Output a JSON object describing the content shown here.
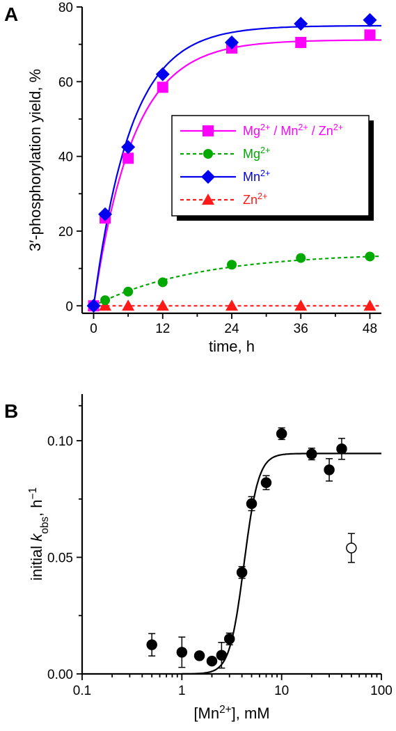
{
  "chart_data": [
    {
      "panel": "A",
      "type": "line",
      "xlabel": "time, h",
      "ylabel": "3′-phosphorylation yield, %",
      "xlim": [
        -2,
        50
      ],
      "ylim": [
        -2,
        80
      ],
      "xticks": [
        0,
        12,
        24,
        36,
        48
      ],
      "yticks": [
        0,
        20,
        40,
        60,
        80
      ],
      "x": [
        0,
        2,
        6,
        12,
        24,
        36,
        48
      ],
      "legend_position": "right-middle, boxed with shadow",
      "series": [
        {
          "name": "Mg2+ / Mn2+ / Zn2+",
          "label_parts": [
            [
              "Mg",
              "2+"
            ],
            [
              " / Mn",
              "2+"
            ],
            [
              " / Zn",
              "2+"
            ]
          ],
          "color": "#ff00ff",
          "marker": "square",
          "line_style": "solid",
          "values": [
            0,
            23.5,
            39.5,
            58.5,
            69,
            70.5,
            72.5
          ],
          "fit": {
            "ymax": 71.2,
            "k": 0.145
          }
        },
        {
          "name": "Mg2+",
          "label_parts": [
            [
              "Mg",
              "2+"
            ]
          ],
          "color": "#00a800",
          "marker": "circle",
          "line_style": "dashed",
          "values": [
            0,
            1.5,
            3.8,
            6.3,
            11,
            12.8,
            13.2
          ],
          "fit": {
            "ymax": 14.2,
            "k": 0.055
          }
        },
        {
          "name": "Mn2+",
          "label_parts": [
            [
              "Mn",
              "2+"
            ]
          ],
          "color": "#0000ee",
          "marker": "diamond",
          "line_style": "solid",
          "values": [
            0,
            24.5,
            42.5,
            62,
            70.5,
            75.5,
            76.5
          ],
          "fit": {
            "ymax": 75,
            "k": 0.155
          }
        },
        {
          "name": "Zn2+",
          "label_parts": [
            [
              "Zn",
              "2+"
            ]
          ],
          "color": "#ff1a1a",
          "marker": "triangle",
          "line_style": "dashed",
          "values": [
            0,
            0,
            0,
            0,
            0,
            0,
            0
          ],
          "fit": {
            "ymax": 0,
            "k": 0.1
          }
        }
      ]
    },
    {
      "panel": "B",
      "type": "scatter",
      "xlabel": "[Mn2+], mM",
      "xlabel_parts": [
        [
          "[Mn",
          ""
        ],
        [
          "2+",
          "sup"
        ],
        [
          "], mM",
          ""
        ]
      ],
      "ylabel": "initial kobs, h−1",
      "ylabel_parts": [
        [
          "initial ",
          ""
        ],
        [
          "k",
          "italic"
        ],
        [
          "obs",
          "sub"
        ],
        [
          ", h",
          ""
        ],
        [
          "−1",
          "sup"
        ]
      ],
      "x_scale": "log",
      "xlim": [
        0.1,
        100
      ],
      "ylim": [
        0,
        0.12
      ],
      "xticks": [
        0.1,
        1,
        10,
        100
      ],
      "xtick_labels": [
        "0.1",
        "1",
        "10",
        "100"
      ],
      "yticks": [
        0,
        0.05,
        0.1
      ],
      "ytick_labels": [
        "0.00",
        "0.05",
        "0.10"
      ],
      "points": [
        {
          "x": 0.5,
          "y": 0.0125,
          "err": 0.0048,
          "filled": true
        },
        {
          "x": 1.0,
          "y": 0.0093,
          "err": 0.0065,
          "filled": true
        },
        {
          "x": 1.5,
          "y": 0.0078,
          "err": 0,
          "filled": true
        },
        {
          "x": 2.0,
          "y": 0.0055,
          "err": 0,
          "filled": true
        },
        {
          "x": 2.5,
          "y": 0.008,
          "err": 0.0055,
          "filled": true
        },
        {
          "x": 3.0,
          "y": 0.015,
          "err": 0.0025,
          "filled": true
        },
        {
          "x": 4.0,
          "y": 0.0435,
          "err": 0.0025,
          "filled": true
        },
        {
          "x": 5.0,
          "y": 0.073,
          "err": 0.003,
          "filled": true
        },
        {
          "x": 7.0,
          "y": 0.082,
          "err": 0.003,
          "filled": true
        },
        {
          "x": 10.0,
          "y": 0.103,
          "err": 0.0025,
          "filled": true
        },
        {
          "x": 20.0,
          "y": 0.0943,
          "err": 0.0025,
          "filled": true
        },
        {
          "x": 30.0,
          "y": 0.0875,
          "err": 0.0048,
          "filled": true
        },
        {
          "x": 40.0,
          "y": 0.0965,
          "err": 0.0045,
          "filled": true
        },
        {
          "x": 50.0,
          "y": 0.054,
          "err": 0.0062,
          "filled": false
        }
      ],
      "fit": {
        "kmax": 0.0945,
        "k_half": 4.2,
        "n": 6
      }
    }
  ]
}
